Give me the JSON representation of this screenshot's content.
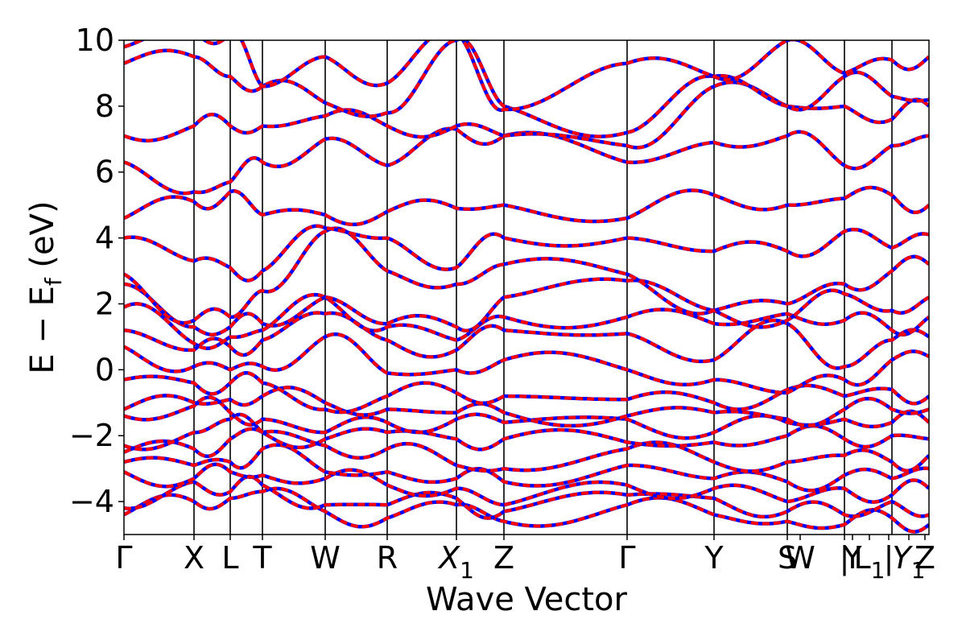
{
  "chart_data": {
    "type": "line",
    "xlabel": "Wave Vector",
    "ylabel": "E − E_f (eV)",
    "ylabel_main": "E − E",
    "ylabel_sub": "f",
    "ylabel_tail": " (eV)",
    "ylim": [
      -5,
      10
    ],
    "xlim": [
      0,
      1
    ],
    "y_ticks": [
      -4,
      -2,
      0,
      2,
      4,
      6,
      8,
      10
    ],
    "y_tick_labels": [
      "−4",
      "−2",
      "0",
      "2",
      "4",
      "6",
      "8",
      "10"
    ],
    "kpoints": [
      {
        "label": "Γ",
        "x": 0.0
      },
      {
        "label": "X",
        "x": 0.087
      },
      {
        "label": "L",
        "x": 0.132
      },
      {
        "label": "T",
        "x": 0.172
      },
      {
        "label": "W",
        "x": 0.25
      },
      {
        "label": "R",
        "x": 0.327
      },
      {
        "label": "X",
        "sub": "1",
        "italic": true,
        "x": 0.413
      },
      {
        "label": "Z",
        "x": 0.472
      },
      {
        "label": "Γ",
        "x": 0.625
      },
      {
        "label": "Y",
        "x": 0.733
      },
      {
        "label": "S",
        "x": 0.824
      },
      {
        "label": "W",
        "x": 0.84
      },
      {
        "label": "|",
        "x": 0.895
      },
      {
        "label": "Y",
        "x": 0.905
      },
      {
        "label": "L",
        "sub": "1",
        "x": 0.926
      },
      {
        "label": "|",
        "x": 0.95
      },
      {
        "label": "Y",
        "sub": "1",
        "italic": true,
        "x": 0.975
      },
      {
        "label": "Z",
        "x": 0.995
      }
    ],
    "vlines": [
      0.087,
      0.132,
      0.172,
      0.25,
      0.327,
      0.413,
      0.472,
      0.625,
      0.733,
      0.824,
      0.895,
      0.954
    ],
    "series": [
      {
        "color": "#ff0000",
        "overlay_color": "#0000ff",
        "style": "solid + dashed overlay"
      }
    ],
    "bands_at_nodes": {
      "x": [
        0.0,
        0.087,
        0.132,
        0.172,
        0.25,
        0.327,
        0.413,
        0.472,
        0.625,
        0.733,
        0.824,
        0.895,
        0.954,
        1.0
      ],
      "bands": [
        [
          -4.4,
          -4.0,
          -3.9,
          -3.7,
          -4.3,
          -4.5,
          -4.1,
          -4.6,
          -4.1,
          -4.4,
          -4.6,
          -4.7,
          -4.5,
          -4.7
        ],
        [
          -4.2,
          -3.4,
          -3.7,
          -3.5,
          -4.1,
          -4.1,
          -3.9,
          -4.3,
          -3.8,
          -3.9,
          -4.3,
          -4.4,
          -4.0,
          -4.4
        ],
        [
          -3.1,
          -3.3,
          -3.1,
          -3.2,
          -3.3,
          -3.5,
          -3.6,
          -4.1,
          -3.5,
          -3.6,
          -4.0,
          -3.6,
          -3.8,
          -3.6
        ],
        [
          -2.8,
          -2.9,
          -2.8,
          -2.4,
          -3.1,
          -3.1,
          -3.3,
          -3.4,
          -2.9,
          -3.3,
          -3.4,
          -3.2,
          -3.3,
          -3.0
        ],
        [
          -2.5,
          -2.4,
          -2.1,
          -1.9,
          -2.3,
          -2.4,
          -2.9,
          -3.0,
          -2.4,
          -2.8,
          -2.8,
          -2.6,
          -2.8,
          -2.6
        ],
        [
          -2.3,
          -1.9,
          -1.5,
          -1.9,
          -2.1,
          -1.9,
          -2.1,
          -2.1,
          -2.2,
          -2.2,
          -2.0,
          -2.1,
          -2.0,
          -2.1
        ],
        [
          -1.4,
          -1.1,
          -1.3,
          -1.5,
          -1.9,
          -1.6,
          -1.5,
          -1.6,
          -1.5,
          -1.9,
          -1.6,
          -1.5,
          -1.6,
          -1.6
        ],
        [
          -1.2,
          -1.0,
          -0.9,
          -0.8,
          -1.0,
          -1.2,
          -1.3,
          -1.3,
          -1.4,
          -1.3,
          -1.5,
          -1.2,
          -1.2,
          -1.2
        ],
        [
          -0.3,
          -0.4,
          -0.4,
          -0.4,
          -1.2,
          -0.8,
          -0.7,
          -0.8,
          -0.9,
          -1.0,
          -0.6,
          -0.8,
          -0.6,
          -0.8
        ],
        [
          0.7,
          0.1,
          0.0,
          0.1,
          1.0,
          -0.1,
          0.0,
          0.3,
          0.0,
          -0.3,
          -0.7,
          -0.3,
          0.3,
          0.4
        ],
        [
          1.2,
          0.6,
          0.7,
          0.9,
          1.7,
          0.9,
          0.6,
          1.2,
          1.1,
          0.3,
          1.4,
          0.1,
          0.9,
          1.0
        ],
        [
          1.9,
          0.8,
          1.0,
          1.2,
          2.2,
          1.3,
          0.9,
          1.6,
          1.6,
          1.4,
          1.7,
          1.5,
          1.2,
          1.6
        ],
        [
          2.6,
          1.3,
          1.3,
          1.4,
          2.2,
          1.4,
          1.3,
          2.2,
          2.7,
          1.8,
          1.5,
          2.3,
          1.8,
          2.2
        ],
        [
          2.9,
          1.5,
          1.6,
          2.4,
          4.2,
          3.0,
          2.6,
          3.2,
          2.9,
          1.8,
          2.0,
          2.6,
          3.0,
          3.2
        ],
        [
          4.0,
          3.3,
          3.1,
          3.0,
          4.3,
          4.0,
          3.1,
          4.0,
          4.0,
          3.6,
          3.6,
          4.2,
          3.7,
          4.1
        ],
        [
          4.6,
          5.1,
          5.4,
          4.7,
          4.7,
          4.8,
          4.9,
          5.0,
          4.6,
          5.3,
          5.0,
          5.2,
          5.3,
          5.0
        ],
        [
          6.3,
          5.4,
          5.7,
          6.3,
          7.0,
          6.2,
          7.3,
          7.1,
          6.3,
          6.9,
          7.1,
          6.2,
          6.8,
          7.1
        ],
        [
          7.1,
          7.4,
          7.4,
          7.4,
          7.7,
          7.4,
          7.4,
          7.1,
          6.8,
          8.6,
          8.0,
          8.0,
          7.6,
          8.0
        ],
        [
          9.3,
          9.5,
          8.9,
          8.6,
          8.1,
          7.8,
          10.0,
          8.0,
          7.2,
          8.9,
          8.0,
          8.9,
          8.3,
          8.2
        ],
        [
          9.8,
          10.3,
          10.2,
          8.6,
          9.5,
          8.7,
          10.2,
          7.9,
          9.3,
          8.9,
          10.0,
          9.0,
          9.4,
          9.5
        ]
      ]
    }
  }
}
